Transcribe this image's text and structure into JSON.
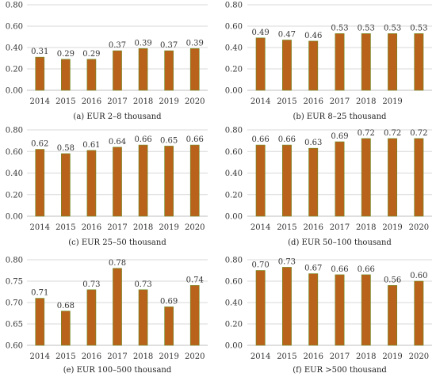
{
  "chart_data": [
    {
      "type": "bar",
      "title": "(a) EUR 2–8 thousand",
      "categories": [
        "2014",
        "2015",
        "2016",
        "2017",
        "2018",
        "2019",
        "2020"
      ],
      "values": [
        0.31,
        0.29,
        0.29,
        0.37,
        0.39,
        0.37,
        0.39
      ],
      "value_labels": [
        "0.31",
        "0.29",
        "0.29",
        "0.37",
        "0.39",
        "0.37",
        "0.39"
      ],
      "yticks": [
        "0.00",
        "0.20",
        "0.40",
        "0.60",
        "0.80"
      ],
      "ylim": [
        0,
        0.8
      ],
      "grid": true,
      "color": "#b8621b"
    },
    {
      "type": "bar",
      "title": "(b) EUR 8–25 thousand",
      "categories": [
        "2014",
        "2015",
        "2016",
        "2017",
        "2018",
        "2019",
        ""
      ],
      "values": [
        0.49,
        0.47,
        0.46,
        0.53,
        0.53,
        0.53,
        0.53
      ],
      "value_labels": [
        "0.49",
        "0.47",
        "0.46",
        "0.53",
        "0.53",
        "0.53",
        "0.53"
      ],
      "yticks": [
        "0.00",
        "0.20",
        "0.40",
        "0.60",
        "0.80"
      ],
      "ylim": [
        0,
        0.8
      ],
      "grid": true,
      "color": "#b8621b"
    },
    {
      "type": "bar",
      "title": "(c) EUR 25–50 thousand",
      "categories": [
        "2014",
        "2015",
        "2016",
        "2017",
        "2018",
        "2019",
        "2020"
      ],
      "values": [
        0.62,
        0.58,
        0.61,
        0.64,
        0.66,
        0.65,
        0.66
      ],
      "value_labels": [
        "0.62",
        "0.58",
        "0.61",
        "0.64",
        "0.66",
        "0.65",
        "0.66"
      ],
      "yticks": [
        "0.00",
        "0.20",
        "0.40",
        "0.60",
        "0.80"
      ],
      "ylim": [
        0,
        0.8
      ],
      "grid": true,
      "color": "#b8621b"
    },
    {
      "type": "bar",
      "title": "(d) EUR 50–100 thousand",
      "categories": [
        "2014",
        "2015",
        "2016",
        "2017",
        "2018",
        "2019",
        "2020"
      ],
      "values": [
        0.66,
        0.66,
        0.63,
        0.69,
        0.72,
        0.72,
        0.72
      ],
      "value_labels": [
        "0.66",
        "0.66",
        "0.63",
        "0.69",
        "0.72",
        "0.72",
        "0.72"
      ],
      "yticks": [
        "0.00",
        "0.20",
        "0.40",
        "0.60",
        "0.80"
      ],
      "ylim": [
        0,
        0.8
      ],
      "grid": true,
      "color": "#b8621b"
    },
    {
      "type": "bar",
      "title": "(e) EUR 100–500 thousand",
      "categories": [
        "2014",
        "2015",
        "2016",
        "2017",
        "2018",
        "2019",
        "2020"
      ],
      "values": [
        0.71,
        0.68,
        0.73,
        0.78,
        0.73,
        0.69,
        0.74
      ],
      "value_labels": [
        "0.71",
        "0.68",
        "0.73",
        "0.78",
        "0.73",
        "0.69",
        "0.74"
      ],
      "yticks": [
        "0.60",
        "0.65",
        "0.70",
        "0.75",
        "0.80"
      ],
      "ylim": [
        0.6,
        0.8
      ],
      "grid": true,
      "color": "#b8621b"
    },
    {
      "type": "bar",
      "title": "(f) EUR >500 thousand",
      "categories": [
        "2014",
        "2015",
        "2016",
        "2017",
        "2018",
        "2019",
        "2020"
      ],
      "values": [
        0.7,
        0.73,
        0.67,
        0.66,
        0.66,
        0.56,
        0.6
      ],
      "value_labels": [
        "0.70",
        "0.73",
        "0.67",
        "0.66",
        "0.66",
        "0.56",
        "0.60"
      ],
      "yticks": [
        "0.00",
        "0.20",
        "0.40",
        "0.60",
        "0.80"
      ],
      "ylim": [
        0,
        0.8
      ],
      "grid": true,
      "color": "#b8621b"
    }
  ]
}
